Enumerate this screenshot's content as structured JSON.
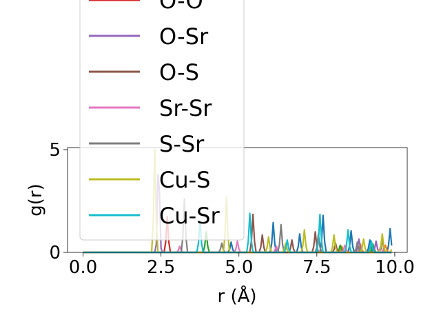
{
  "chart_data": {
    "type": "line",
    "xlabel": "r (Å)",
    "ylabel": "g(r)",
    "xlim": [
      -0.5,
      10.4
    ],
    "ylim": [
      0,
      5.1
    ],
    "xticks": [
      {
        "value": 0.0,
        "label": "0.0"
      },
      {
        "value": 2.5,
        "label": "2.5"
      },
      {
        "value": 5.0,
        "label": "5.0"
      },
      {
        "value": 7.5,
        "label": "7.5"
      },
      {
        "value": 10.0,
        "label": "10.0"
      }
    ],
    "yticks": [
      {
        "value": 0,
        "label": "0"
      },
      {
        "value": 5,
        "label": "5"
      }
    ],
    "legend": {
      "placement": "upper left, overlapping and extending above the axes"
    },
    "series": [
      {
        "name": "",
        "color": "#1f77b4",
        "peaks": [
          [
            4.75,
            0.5
          ],
          [
            6.1,
            1.45
          ],
          [
            6.95,
            0.9
          ],
          [
            7.7,
            1.8
          ],
          [
            8.6,
            1.05
          ],
          [
            9.2,
            0.6
          ],
          [
            9.85,
            1.15
          ]
        ]
      },
      {
        "name": "",
        "color": "#ff7f0e",
        "peaks": [
          [
            8.3,
            0.3
          ],
          [
            8.9,
            0.4
          ],
          [
            9.7,
            0.35
          ]
        ]
      },
      {
        "name": "",
        "color": "#2ca02c",
        "peaks": [
          [
            3.95,
            1.0
          ],
          [
            8.25,
            0.35
          ],
          [
            9.3,
            0.4
          ]
        ]
      },
      {
        "name": "O-O",
        "color": "#d62728",
        "peaks": [
          [
            2.7,
            1.75
          ]
        ]
      },
      {
        "name": "O-Sr",
        "color": "#9467bd",
        "peaks": [
          [
            2.42,
            4.6
          ],
          [
            8.85,
            0.65
          ],
          [
            9.4,
            0.55
          ]
        ]
      },
      {
        "name": "O-S",
        "color": "#8c564b",
        "peaks": [
          [
            5.45,
            1.85
          ],
          [
            5.75,
            0.85
          ],
          [
            6.7,
            0.6
          ],
          [
            7.45,
            1.0
          ],
          [
            8.1,
            0.45
          ]
        ]
      },
      {
        "name": "Sr-Sr",
        "color": "#e377c2",
        "peaks": [
          [
            3.1,
            0.3
          ],
          [
            4.95,
            0.55
          ],
          [
            6.2,
            0.3
          ],
          [
            8.4,
            0.35
          ],
          [
            9.55,
            0.3
          ]
        ]
      },
      {
        "name": "S-Sr",
        "color": "#7f7f7f",
        "peaks": [
          [
            3.25,
            2.6
          ],
          [
            4.45,
            0.45
          ],
          [
            6.35,
            1.35
          ],
          [
            7.55,
            0.9
          ],
          [
            8.8,
            0.5
          ],
          [
            9.6,
            0.6
          ]
        ]
      },
      {
        "name": "Cu-S",
        "color": "#bcbd22",
        "peaks": [
          [
            2.3,
            5.0
          ],
          [
            4.6,
            2.7
          ],
          [
            5.95,
            0.75
          ],
          [
            6.5,
            0.45
          ],
          [
            7.1,
            1.1
          ],
          [
            8.05,
            0.85
          ],
          [
            9.0,
            0.65
          ],
          [
            9.6,
            0.9
          ],
          [
            9.95,
            0.5
          ]
        ]
      },
      {
        "name": "Cu-Sr",
        "color": "#17becf",
        "peaks": [
          [
            3.75,
            1.55
          ],
          [
            5.35,
            1.9
          ],
          [
            6.55,
            0.6
          ],
          [
            7.6,
            1.85
          ],
          [
            8.5,
            1.1
          ],
          [
            9.25,
            0.55
          ]
        ]
      }
    ]
  }
}
